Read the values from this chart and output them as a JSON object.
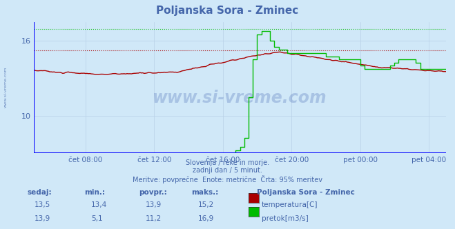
{
  "title": "Poljanska Sora - Zminec",
  "bg_color": "#d0e8f8",
  "plot_bg_color": "#d0e8f8",
  "grid_color": "#b8d0e8",
  "text_color": "#4466aa",
  "title_color": "#4466aa",
  "temp_color": "#aa0000",
  "flow_color": "#00bb00",
  "axis_label_color": "#4466aa",
  "x_labels": [
    "čet 08:00",
    "čet 12:00",
    "čet 16:00",
    "čet 20:00",
    "pet 00:00",
    "pet 04:00"
  ],
  "y_ticks": [
    10,
    16
  ],
  "ylim": [
    7.0,
    17.5
  ],
  "xlim": [
    0,
    288
  ],
  "subtitle1": "Slovenija / reke in morje.",
  "subtitle2": "zadnji dan / 5 minut.",
  "subtitle3": "Meritve: povprečne  Enote: metrične  Črta: 95% meritev",
  "legend_title": "Poljanska Sora - Zminec",
  "temp_label": "temperatura[C]",
  "flow_label": "pretok[m3/s]",
  "table_headers": [
    "sedaj:",
    "min.:",
    "povpr.:",
    "maks.:"
  ],
  "temp_row": [
    "13,5",
    "13,4",
    "13,9",
    "15,2"
  ],
  "flow_row": [
    "13,9",
    "5,1",
    "11,2",
    "16,9"
  ],
  "temp_max_hline": 15.2,
  "flow_max_hline": 16.9,
  "watermark": "www.si-vreme.com"
}
